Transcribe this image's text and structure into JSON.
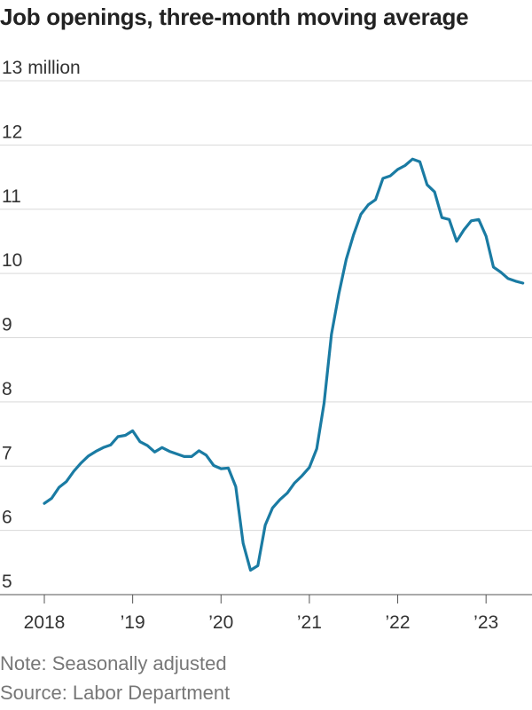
{
  "chart_data": {
    "type": "line",
    "title": "Job openings, three-month moving average",
    "ylabel": "",
    "xlabel": "",
    "ylim": [
      5,
      13
    ],
    "yticks": [
      5,
      6,
      7,
      8,
      9,
      10,
      11,
      12,
      13
    ],
    "ytick_labels": [
      "5",
      "6",
      "7",
      "8",
      "9",
      "10",
      "11",
      "12",
      "13 million"
    ],
    "xlim": [
      2018.0,
      2023.5
    ],
    "xticks": [
      2018,
      2019,
      2020,
      2021,
      2022,
      2023
    ],
    "xtick_labels": [
      "2018",
      "’19",
      "’20",
      "’21",
      "’22",
      "’23"
    ],
    "grid": true,
    "line_color": "#1a7ba3",
    "series": [
      {
        "x": [
          2018.0,
          2018.083,
          2018.167,
          2018.25,
          2018.333,
          2018.417,
          2018.5,
          2018.583,
          2018.667,
          2018.75,
          2018.833,
          2018.917,
          2019.0,
          2019.083,
          2019.167,
          2019.25,
          2019.333,
          2019.417,
          2019.5,
          2019.583,
          2019.667,
          2019.75,
          2019.833,
          2019.917,
          2020.0,
          2020.083,
          2020.167,
          2020.25,
          2020.333,
          2020.417,
          2020.5,
          2020.583,
          2020.667,
          2020.75,
          2020.833,
          2020.917,
          2021.0,
          2021.083,
          2021.167,
          2021.25,
          2021.333,
          2021.417,
          2021.5,
          2021.583,
          2021.667,
          2021.75,
          2021.833,
          2021.917,
          2022.0,
          2022.083,
          2022.167,
          2022.25,
          2022.333,
          2022.417,
          2022.5,
          2022.583,
          2022.667,
          2022.75,
          2022.833,
          2022.917,
          2023.0,
          2023.083,
          2023.167,
          2023.25,
          2023.333,
          2023.417
        ],
        "values": [
          6.42,
          6.5,
          6.67,
          6.76,
          6.92,
          7.05,
          7.16,
          7.23,
          7.29,
          7.33,
          7.46,
          7.48,
          7.55,
          7.38,
          7.32,
          7.22,
          7.29,
          7.23,
          7.19,
          7.15,
          7.15,
          7.24,
          7.17,
          7.01,
          6.96,
          6.97,
          6.68,
          5.8,
          5.38,
          5.45,
          6.08,
          6.35,
          6.48,
          6.58,
          6.74,
          6.85,
          6.98,
          7.27,
          7.98,
          9.05,
          9.68,
          10.22,
          10.6,
          10.92,
          11.07,
          11.15,
          11.48,
          11.52,
          11.62,
          11.68,
          11.78,
          11.74,
          11.38,
          11.27,
          10.87,
          10.84,
          10.5,
          10.68,
          10.82,
          10.84,
          10.58,
          10.1,
          10.02,
          9.92,
          9.88,
          9.85
        ]
      }
    ]
  },
  "notes": {
    "note": "Note: Seasonally adjusted",
    "source": "Source: Labor Department"
  }
}
